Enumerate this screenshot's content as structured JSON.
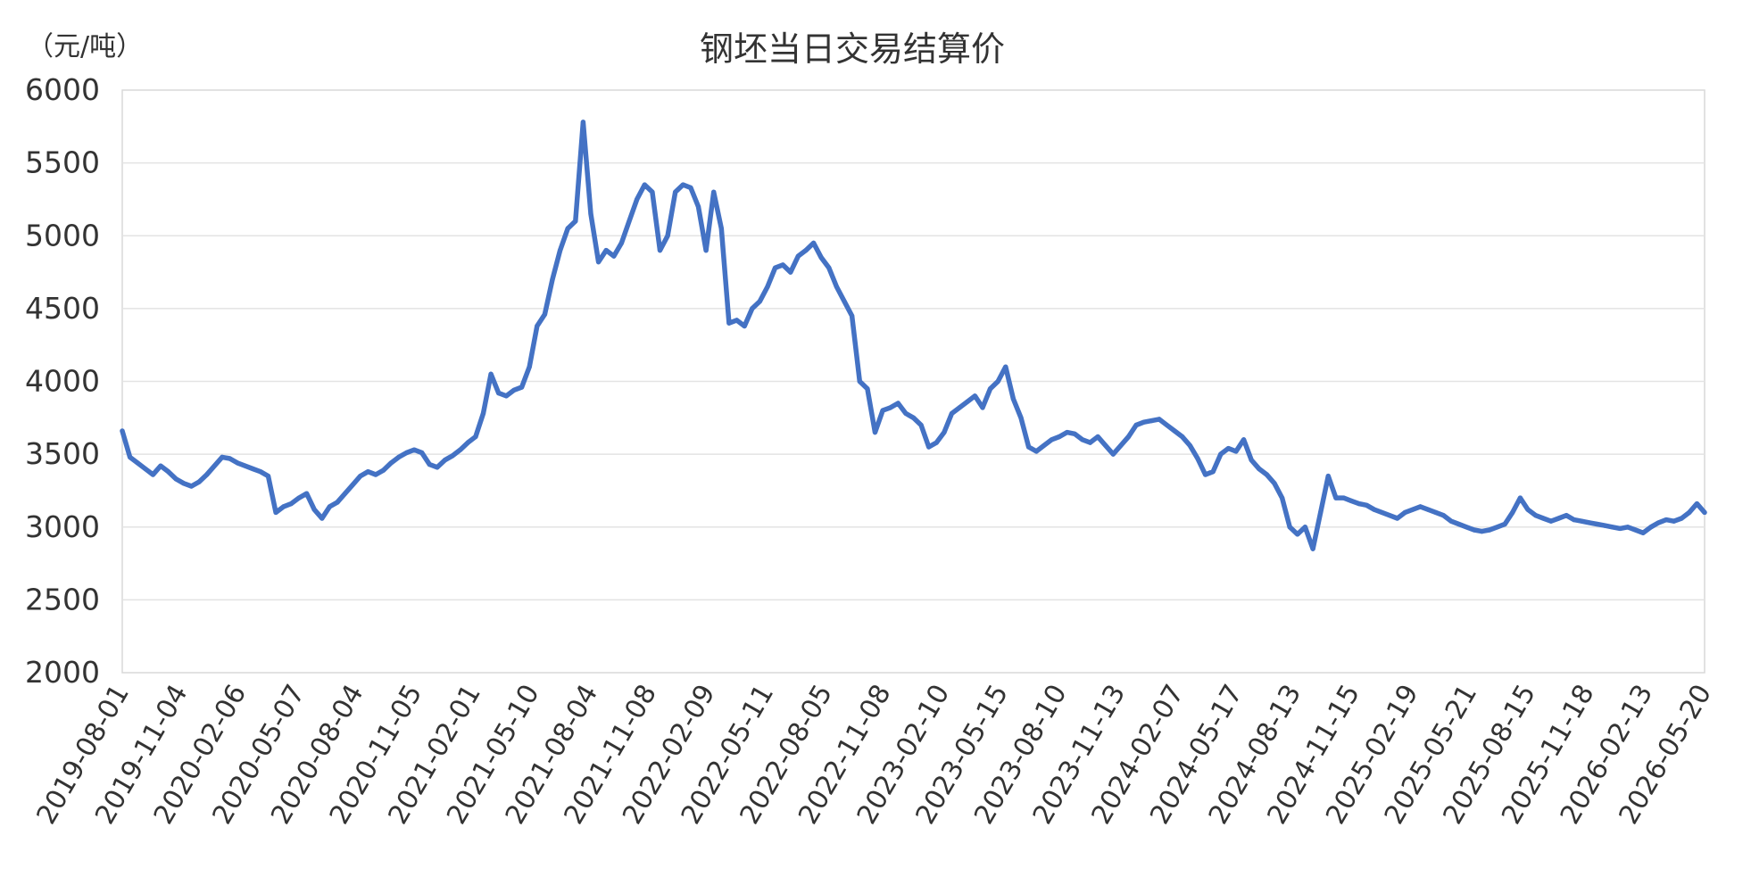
{
  "chart_data": {
    "type": "line",
    "title": "钢坯当日交易结算价",
    "unit_label": "（元/吨）",
    "ylim": [
      2000,
      6000
    ],
    "y_ticks": [
      "6000",
      "5500",
      "5000",
      "4500",
      "4000",
      "3500",
      "3000",
      "2500",
      "2000"
    ],
    "x_ticks": [
      "2019-08-01",
      "2019-11-04",
      "2020-02-06",
      "2020-05-07",
      "2020-08-04",
      "2020-11-05",
      "2021-02-01",
      "2021-05-10",
      "2021-08-04",
      "2021-11-08",
      "2022-02-09",
      "2022-05-11",
      "2022-08-05",
      "2022-11-08",
      "2023-02-10",
      "2023-05-15",
      "2023-08-10",
      "2023-11-13",
      "2024-02-07",
      "2024-05-17",
      "2024-08-13",
      "2024-11-15",
      "2025-02-19",
      "2025-05-21",
      "2025-08-15",
      "2025-11-18",
      "2026-02-13",
      "2026-05-20"
    ],
    "grid": true,
    "legend": "none",
    "color": "#4472c4",
    "series": [
      {
        "values": [
          3660,
          3480,
          3440,
          3400,
          3360,
          3420,
          3380,
          3330,
          3300,
          3280,
          3310,
          3360,
          3420,
          3480,
          3470,
          3440,
          3420,
          3400,
          3380,
          3350,
          3100,
          3140,
          3160,
          3200,
          3230,
          3120,
          3060,
          3140,
          3170,
          3230,
          3290,
          3350,
          3380,
          3360,
          3390,
          3440,
          3480,
          3510,
          3530,
          3510,
          3430,
          3410,
          3460,
          3490,
          3530,
          3580,
          3620,
          3780,
          4050,
          3920,
          3900,
          3940,
          3960,
          4100,
          4380,
          4460,
          4700,
          4900,
          5050,
          5100,
          5780,
          5150,
          4820,
          4900,
          4860,
          4950,
          5100,
          5250,
          5350,
          5300,
          4900,
          5000,
          5300,
          5350,
          5330,
          5200,
          4900,
          5300,
          5050,
          4400,
          4420,
          4380,
          4500,
          4550,
          4650,
          4780,
          4800,
          4750,
          4860,
          4900,
          4950,
          4850,
          4780,
          4650,
          4550,
          4450,
          4000,
          3950,
          3650,
          3800,
          3820,
          3850,
          3780,
          3750,
          3700,
          3550,
          3580,
          3650,
          3780,
          3820,
          3860,
          3900,
          3820,
          3950,
          4000,
          4100,
          3880,
          3750,
          3550,
          3520,
          3560,
          3600,
          3620,
          3650,
          3640,
          3600,
          3580,
          3620,
          3560,
          3500,
          3560,
          3620,
          3700,
          3720,
          3730,
          3740,
          3700,
          3660,
          3620,
          3560,
          3470,
          3360,
          3380,
          3500,
          3540,
          3520,
          3600,
          3460,
          3400,
          3360,
          3300,
          3200,
          3000,
          2950,
          3000,
          2850,
          3100,
          3350,
          3200,
          3200,
          3180,
          3160,
          3150,
          3120,
          3100,
          3080,
          3060,
          3100,
          3120,
          3140,
          3120,
          3100,
          3080,
          3040,
          3020,
          3000,
          2980,
          2970,
          2980,
          3000,
          3020,
          3100,
          3200,
          3120,
          3080,
          3060,
          3040,
          3060,
          3080,
          3050,
          3040,
          3030,
          3020,
          3010,
          3000,
          2990,
          3000,
          2980,
          2960,
          3000,
          3030,
          3050,
          3040,
          3060,
          3100,
          3160,
          3100
        ]
      }
    ]
  }
}
